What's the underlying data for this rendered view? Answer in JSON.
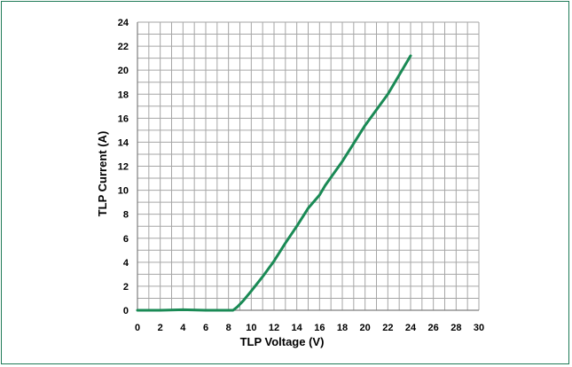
{
  "chart_data": {
    "type": "line",
    "title": "",
    "xlabel": "TLP Voltage (V)",
    "ylabel": "TLP Current (A)",
    "xlim": [
      0,
      30
    ],
    "ylim": [
      0,
      24
    ],
    "x_ticks": [
      "0",
      "2",
      "4",
      "6",
      "8",
      "10",
      "12",
      "14",
      "16",
      "18",
      "20",
      "22",
      "24",
      "26",
      "28",
      "30"
    ],
    "y_ticks": [
      "0",
      "2",
      "4",
      "6",
      "8",
      "10",
      "12",
      "14",
      "16",
      "18",
      "20",
      "22",
      "24"
    ],
    "grid": true,
    "legend": "none",
    "series": [
      {
        "color": "#1a8a55",
        "points": [
          [
            0,
            0
          ],
          [
            2,
            0
          ],
          [
            4,
            0.05
          ],
          [
            6,
            0
          ],
          [
            8,
            0
          ],
          [
            8.4,
            0
          ],
          [
            8.8,
            0.3
          ],
          [
            9.3,
            0.8
          ],
          [
            10,
            1.6
          ],
          [
            11,
            2.8
          ],
          [
            12,
            4.1
          ],
          [
            13,
            5.6
          ],
          [
            14,
            7.0
          ],
          [
            15,
            8.5
          ],
          [
            16,
            9.6
          ],
          [
            16.5,
            10.4
          ],
          [
            18,
            12.4
          ],
          [
            19,
            13.9
          ],
          [
            20,
            15.4
          ],
          [
            21,
            16.7
          ],
          [
            22,
            18.0
          ],
          [
            23,
            19.6
          ],
          [
            24,
            21.2
          ]
        ]
      }
    ]
  },
  "colors": {
    "frame": "#1f7a57",
    "grid": "#a6a6a6",
    "line": "#1a8a55"
  }
}
